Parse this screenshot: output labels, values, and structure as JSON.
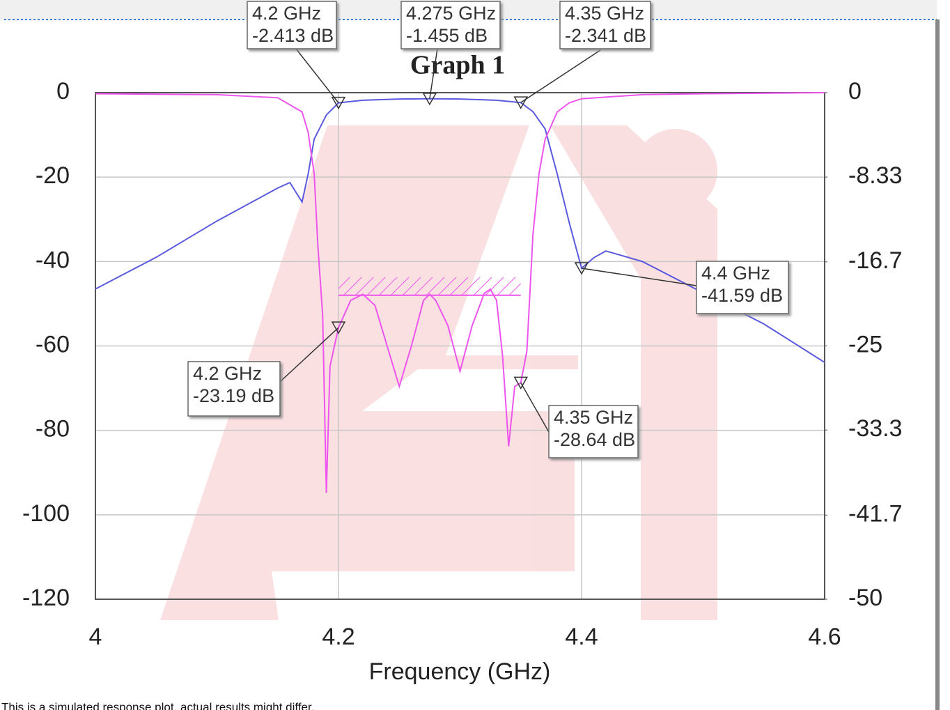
{
  "chart_data": {
    "type": "line",
    "title": "Graph 1",
    "x_label": "Frequency (GHz)",
    "footnote": "This is a simulated response plot, actual results might differ.",
    "xlim": [
      4,
      4.6
    ],
    "xticks": [
      4,
      4.2,
      4.4,
      4.6
    ],
    "ylim": [
      -120,
      0
    ],
    "yticks": [
      0,
      -20,
      -40,
      -60,
      -80,
      -100,
      -120
    ],
    "y2lim": [
      -50,
      0
    ],
    "y2ticks": [
      0,
      -8.33,
      -16.7,
      -25,
      -33.3,
      -41.7,
      -50
    ],
    "grid": true,
    "series": [
      {
        "color": "#5a5ae0",
        "axis": "y",
        "x": [
          4.0,
          4.05,
          4.1,
          4.15,
          4.16,
          4.17,
          4.175,
          4.18,
          4.19,
          4.2,
          4.22,
          4.25,
          4.275,
          4.3,
          4.33,
          4.35,
          4.36,
          4.37,
          4.38,
          4.39,
          4.4,
          4.41,
          4.42,
          4.45,
          4.5,
          4.55,
          4.6
        ],
        "values": [
          -46.5,
          -39,
          -30.4,
          -22.6,
          -21.3,
          -25.9,
          -19.3,
          -11,
          -5.3,
          -2.413,
          -1.8,
          -1.5,
          -1.455,
          -1.5,
          -1.8,
          -2.341,
          -4.5,
          -8.6,
          -19.3,
          -30.9,
          -41.59,
          -39.1,
          -37.5,
          -40,
          -47.4,
          -54.8,
          -63.9
        ]
      },
      {
        "color": "#ee55ee",
        "axis": "y2",
        "x": [
          4.0,
          4.1,
          4.15,
          4.17,
          4.175,
          4.18,
          4.183,
          4.187,
          4.19,
          4.193,
          4.2,
          4.21,
          4.22,
          4.23,
          4.24,
          4.25,
          4.26,
          4.27,
          4.275,
          4.28,
          4.29,
          4.3,
          4.31,
          4.32,
          4.325,
          4.33,
          4.335,
          4.34,
          4.345,
          4.35,
          4.355,
          4.36,
          4.365,
          4.37,
          4.38,
          4.39,
          4.4,
          4.45,
          4.5,
          4.6
        ],
        "values": [
          -0.1,
          -0.2,
          -0.5,
          -1.9,
          -3.9,
          -8,
          -15,
          -22,
          -39.5,
          -27,
          -23.19,
          -20.5,
          -19.9,
          -21,
          -25,
          -29,
          -25,
          -20.5,
          -19.9,
          -20.5,
          -23,
          -27.5,
          -23,
          -19.8,
          -19.4,
          -20.5,
          -26,
          -34.9,
          -29,
          -28.64,
          -25.5,
          -14,
          -8,
          -4.6,
          -1.9,
          -1,
          -0.6,
          -0.2,
          -0.1,
          0
        ]
      }
    ],
    "spec": {
      "x": [
        4.2,
        4.35
      ],
      "value": -20,
      "axis": "y2"
    },
    "markers": [
      {
        "series": 0,
        "x": 4.2,
        "y": -2.413,
        "x_label": "4.2 GHz",
        "y_label": "-2.413 dB"
      },
      {
        "series": 0,
        "x": 4.275,
        "y": -1.455,
        "x_label": "4.275 GHz",
        "y_label": "-1.455 dB"
      },
      {
        "series": 0,
        "x": 4.35,
        "y": -2.341,
        "x_label": "4.35 GHz",
        "y_label": "-2.341 dB"
      },
      {
        "series": 0,
        "x": 4.4,
        "y": -41.59,
        "x_label": "4.4 GHz",
        "y_label": "-41.59 dB"
      },
      {
        "series": 1,
        "x": 4.2,
        "y": -23.19,
        "x_label": "4.2 GHz",
        "y_label": "-23.19 dB"
      },
      {
        "series": 1,
        "x": 4.35,
        "y": -28.64,
        "x_label": "4.35 GHz",
        "y_label": "-28.64 dB"
      }
    ]
  }
}
